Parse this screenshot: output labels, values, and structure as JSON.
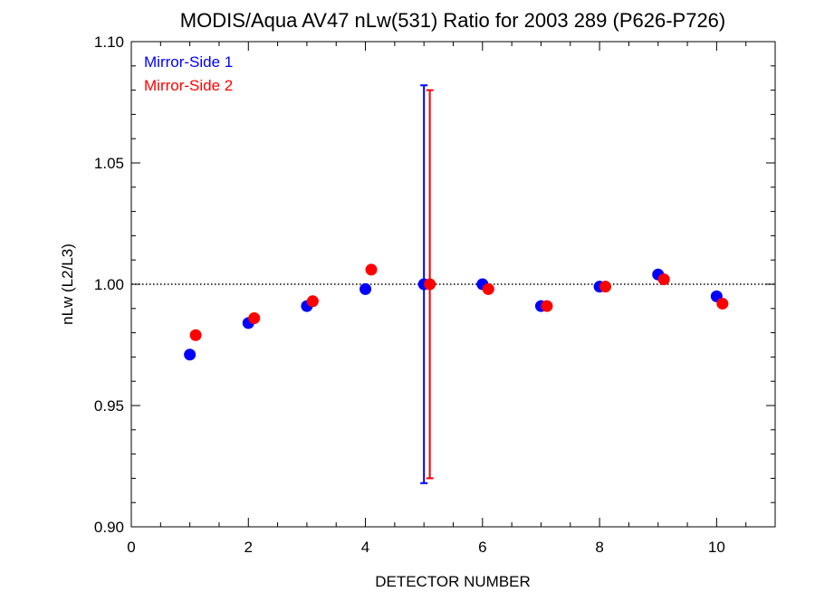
{
  "chart_data": {
    "type": "scatter",
    "title": "MODIS/Aqua AV47 nLw(531) Ratio for 2003 289 (P626-P726)",
    "xlabel": "DETECTOR NUMBER",
    "ylabel": "nLw (L2/L3)",
    "xlim": [
      0,
      11
    ],
    "ylim": [
      0.9,
      1.1
    ],
    "x_ticks": [
      0,
      2,
      4,
      6,
      8,
      10
    ],
    "x_tick_labels": [
      "0",
      "2",
      "4",
      "6",
      "8",
      "10"
    ],
    "y_ticks": [
      0.9,
      0.95,
      1.0,
      1.05,
      1.1
    ],
    "y_tick_labels": [
      "0.90",
      "0.95",
      "1.00",
      "1.05",
      "1.10"
    ],
    "reference_line": 1.0,
    "legend_position": "top-left",
    "series": [
      {
        "name": "Mirror-Side 1",
        "color": "#0000ff",
        "x": [
          1,
          2,
          3,
          4,
          5,
          6,
          7,
          8,
          9,
          10
        ],
        "y": [
          0.971,
          0.984,
          0.991,
          0.998,
          1.0,
          1.0,
          0.991,
          0.999,
          1.004,
          0.995
        ],
        "error_bar": {
          "x": 5,
          "low": 0.918,
          "high": 1.082
        }
      },
      {
        "name": "Mirror-Side 2",
        "color": "#ff0000",
        "x": [
          1.1,
          2.1,
          3.1,
          4.1,
          5.1,
          6.1,
          7.1,
          8.1,
          9.1,
          10.1
        ],
        "y": [
          0.979,
          0.986,
          0.993,
          1.006,
          1.0,
          0.998,
          0.991,
          0.999,
          1.002,
          0.992
        ],
        "error_bar": {
          "x": 5.1,
          "low": 0.92,
          "high": 1.08
        }
      }
    ]
  }
}
